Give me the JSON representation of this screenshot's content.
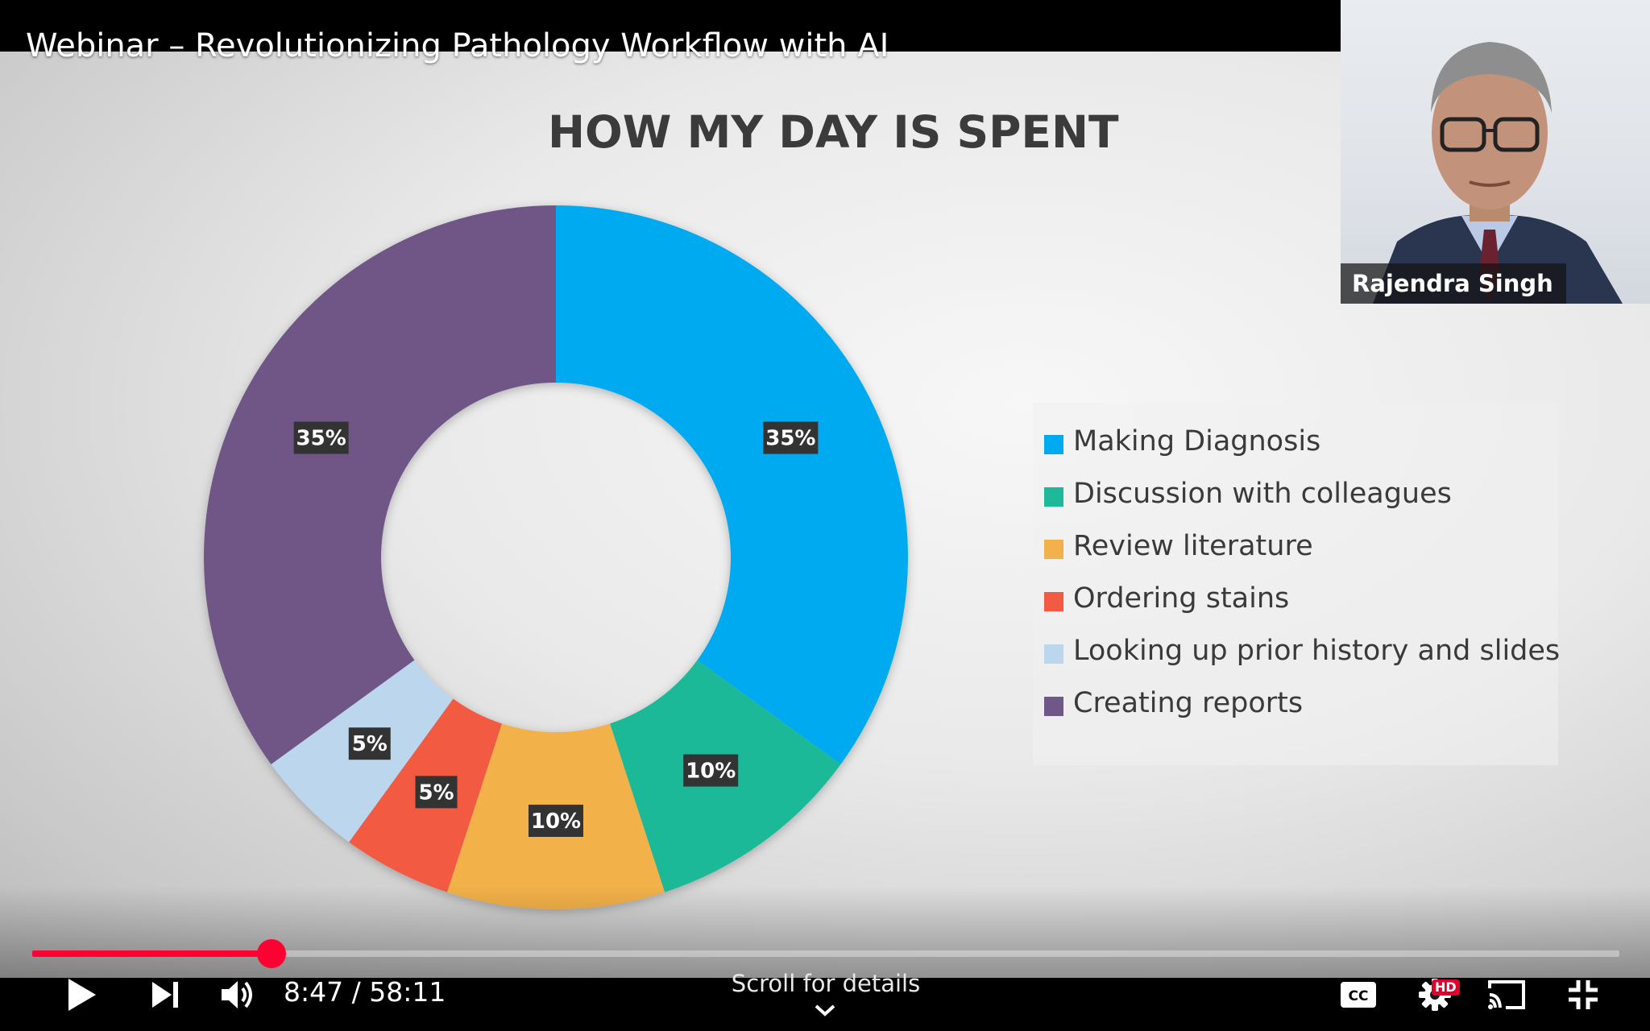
{
  "video": {
    "title": "Webinar – Revolutionizing Pathology Workflow with AI"
  },
  "presenter": {
    "name": "Rajendra Singh"
  },
  "slide": {
    "title": "HOW MY DAY IS SPENT"
  },
  "chart_data": {
    "type": "pie",
    "variant": "donut",
    "title": "HOW MY DAY IS SPENT",
    "slices": [
      {
        "label": "Making Diagnosis",
        "value": 35,
        "display": "35%",
        "color": "#00aaf1"
      },
      {
        "label": "Discussion with colleagues",
        "value": 10,
        "display": "10%",
        "color": "#1db999"
      },
      {
        "label": "Review literature",
        "value": 10,
        "display": "10%",
        "color": "#f2b14a"
      },
      {
        "label": "Ordering stains",
        "value": 5,
        "display": "5%",
        "color": "#f25a43"
      },
      {
        "label": "Looking up prior history and slides",
        "value": 5,
        "display": "5%",
        "color": "#bcd6ee"
      },
      {
        "label": "Creating reports",
        "value": 35,
        "display": "35%",
        "color": "#6f5787"
      }
    ],
    "legend_position": "right"
  },
  "player": {
    "current_time": "8:47",
    "duration": "58:11",
    "time_separator": " / ",
    "progress_fraction": 0.151,
    "scroll_hint": "Scroll for details",
    "hd_badge": "HD",
    "colors": {
      "progress": "#ff0033"
    },
    "icons": [
      "play-icon",
      "next-icon",
      "volume-icon",
      "captions-icon",
      "settings-icon",
      "cast-icon",
      "exit-fullscreen-icon",
      "chevron-down-icon"
    ]
  }
}
